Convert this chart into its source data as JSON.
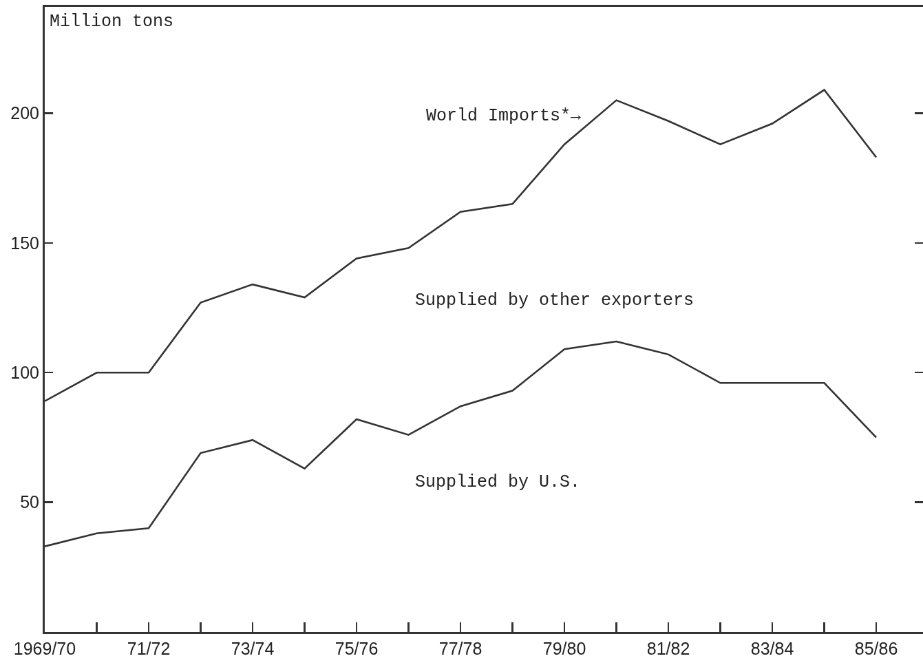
{
  "chart_data": {
    "type": "line",
    "ylabel": "Million tons",
    "categories": [
      "1969/70",
      null,
      "71/72",
      null,
      "73/74",
      null,
      "75/76",
      null,
      "77/78",
      null,
      "79/80",
      null,
      "81/82",
      null,
      "83/84",
      null,
      "85/86"
    ],
    "series": [
      {
        "name": "World Imports*→",
        "color": "#333333",
        "values": [
          89,
          100,
          100,
          127,
          134,
          129,
          144,
          148,
          162,
          165,
          188,
          205,
          197,
          188,
          196,
          209,
          183
        ]
      },
      {
        "name": "Supplied by U.S.",
        "color": "#333333",
        "values": [
          33,
          38,
          40,
          69,
          74,
          63,
          82,
          76,
          87,
          93,
          109,
          112,
          107,
          96,
          96,
          96,
          75
        ]
      }
    ],
    "annotations": [
      "Supplied by other exporters"
    ],
    "ylim": [
      0,
      241
    ],
    "yticks": [
      50,
      100,
      150,
      200
    ],
    "grid": false,
    "legend": false,
    "marker": "none",
    "line_style": "solid"
  }
}
